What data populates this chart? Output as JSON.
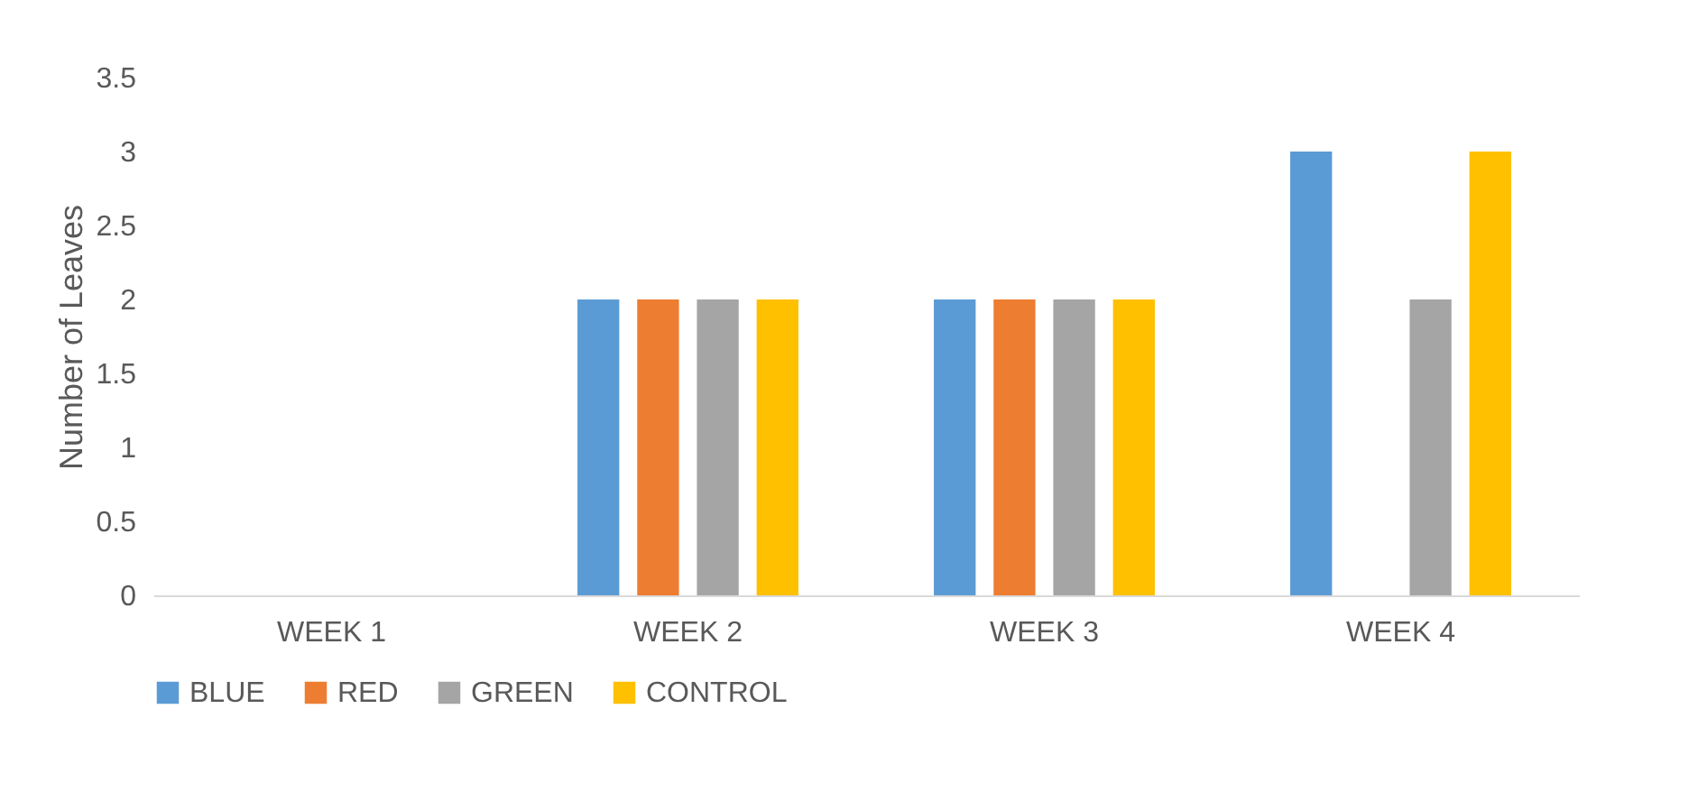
{
  "chart_data": {
    "type": "bar",
    "ylabel": "Number of Leaves",
    "categories": [
      "WEEK 1",
      "WEEK 2",
      "WEEK 3",
      "WEEK 4"
    ],
    "series": [
      {
        "name": "BLUE",
        "color": "#5b9bd5",
        "values": [
          0,
          2,
          2,
          3
        ]
      },
      {
        "name": "RED",
        "color": "#ed7d31",
        "values": [
          0,
          2,
          2,
          0
        ]
      },
      {
        "name": "GREEN",
        "color": "#a5a5a5",
        "values": [
          0,
          2,
          2,
          2
        ]
      },
      {
        "name": "CONTROL",
        "color": "#ffc000",
        "values": [
          0,
          2,
          2,
          3
        ]
      }
    ],
    "ylim": [
      0,
      3.5
    ],
    "yticks": [
      0,
      0.5,
      1,
      1.5,
      2,
      2.5,
      3,
      3.5
    ],
    "grid": false,
    "legend": "bottom"
  }
}
